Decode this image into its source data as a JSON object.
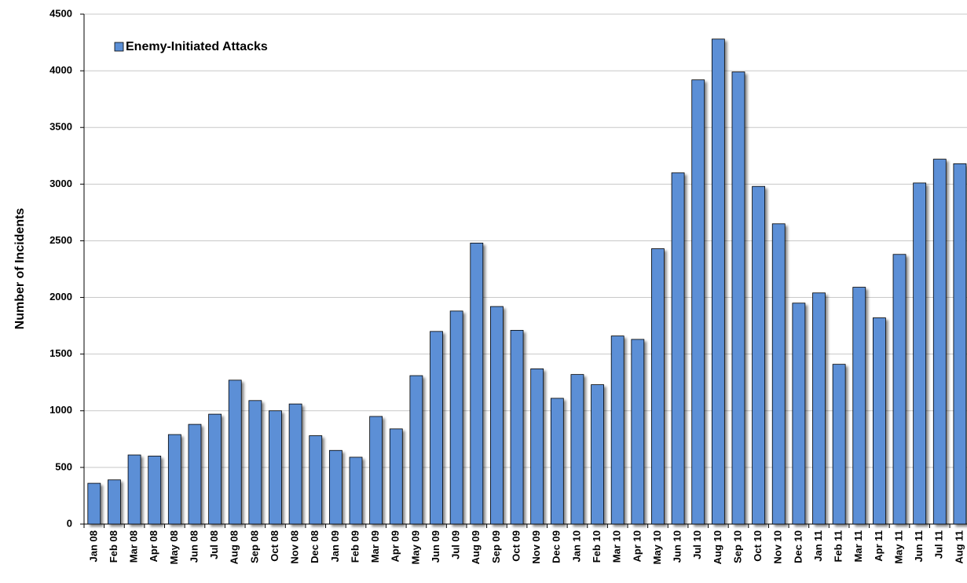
{
  "chart_data": {
    "type": "bar",
    "y_label": "Number of Incidents",
    "categories": [
      "Jan 08",
      "Feb 08",
      "Mar 08",
      "Apr 08",
      "May 08",
      "Jun 08",
      "Jul 08",
      "Aug 08",
      "Sep 08",
      "Oct 08",
      "Nov 08",
      "Dec 08",
      "Jan 09",
      "Feb 09",
      "Mar 09",
      "Apr 09",
      "May 09",
      "Jun 09",
      "Jul 09",
      "Aug 09",
      "Sep 09",
      "Oct 09",
      "Nov 09",
      "Dec 09",
      "Jan 10",
      "Feb 10",
      "Mar 10",
      "Apr 10",
      "May 10",
      "Jun 10",
      "Jul 10",
      "Aug 10",
      "Sep 10",
      "Oct 10",
      "Nov 10",
      "Dec 10",
      "Jan 11",
      "Feb 11",
      "Mar 11",
      "Apr 11",
      "May 11",
      "Jun 11",
      "Jul 11",
      "Aug 11"
    ],
    "series": [
      {
        "name": "Enemy-Initiated Attacks",
        "color": "#5b8fd6",
        "values": [
          360,
          390,
          610,
          600,
          790,
          880,
          970,
          1270,
          1090,
          1000,
          1060,
          780,
          650,
          590,
          950,
          840,
          1310,
          1700,
          1880,
          2480,
          1920,
          1710,
          1370,
          1110,
          1320,
          1230,
          1660,
          1630,
          2430,
          3100,
          3920,
          4280,
          3990,
          2980,
          2650,
          1950,
          2040,
          1410,
          2090,
          1820,
          2380,
          3010,
          3220,
          3180
        ]
      }
    ],
    "ylim": [
      0,
      4500
    ],
    "yticks": [
      0,
      500,
      1000,
      1500,
      2000,
      2500,
      3000,
      3500,
      4000,
      4500
    ],
    "grid": true,
    "legend": "top-left"
  }
}
